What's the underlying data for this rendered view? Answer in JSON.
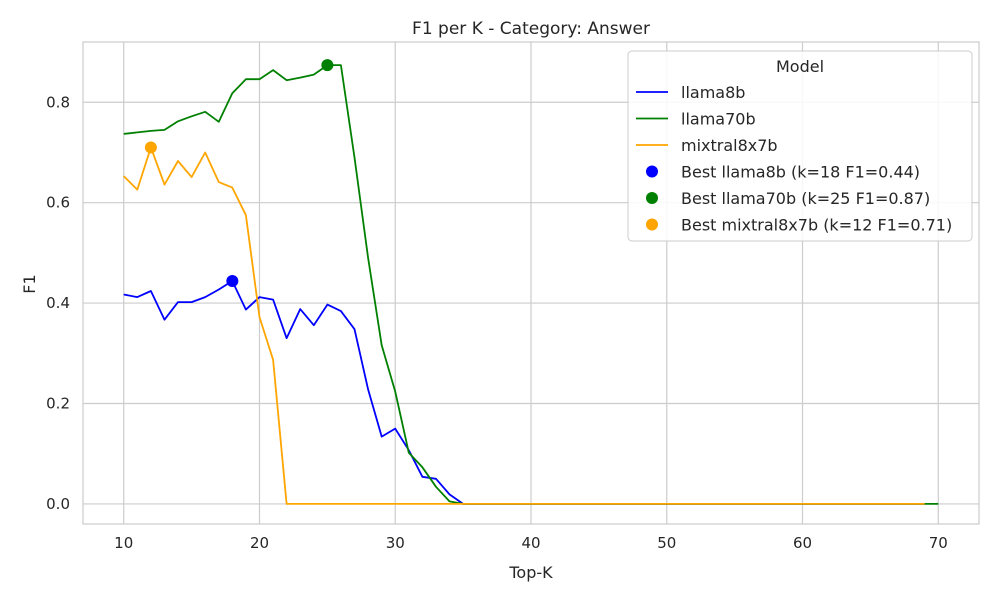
{
  "chart_data": {
    "type": "line",
    "title": "F1 per K - Category: Answer",
    "xlabel": "Top-K",
    "ylabel": "F1",
    "xlim": [
      7,
      73
    ],
    "ylim": [
      -0.04,
      0.92
    ],
    "xticks": [
      10,
      20,
      30,
      40,
      50,
      60,
      70
    ],
    "yticks": [
      0.0,
      0.2,
      0.4,
      0.6,
      0.8
    ],
    "ytick_labels": [
      "0.0",
      "0.2",
      "0.4",
      "0.6",
      "0.8"
    ],
    "grid": true,
    "legend": {
      "title": "Model",
      "placement": "top-right"
    },
    "series": [
      {
        "name": "llama8b",
        "color": "#0000ff",
        "x": [
          10,
          11,
          12,
          13,
          14,
          15,
          16,
          17,
          18,
          19,
          20,
          21,
          22,
          23,
          24,
          25,
          26,
          27,
          28,
          29,
          30,
          31,
          32,
          33,
          34,
          35,
          36,
          37,
          38,
          39,
          40,
          41,
          42,
          43,
          44,
          45,
          46,
          47,
          48,
          49,
          50,
          51,
          52,
          53,
          54,
          55,
          56,
          57,
          58,
          59,
          60,
          61,
          62,
          63,
          64,
          65,
          66,
          67,
          68,
          69
        ],
        "y": [
          0.417,
          0.412,
          0.424,
          0.367,
          0.402,
          0.402,
          0.412,
          0.427,
          0.444,
          0.387,
          0.412,
          0.407,
          0.33,
          0.388,
          0.356,
          0.397,
          0.384,
          0.348,
          0.228,
          0.134,
          0.15,
          0.107,
          0.054,
          0.05,
          0.019,
          0.0,
          0,
          0,
          0,
          0,
          0,
          0,
          0,
          0,
          0,
          0,
          0,
          0,
          0,
          0,
          0,
          0,
          0,
          0,
          0,
          0,
          0,
          0,
          0,
          0,
          0,
          0,
          0,
          0,
          0,
          0,
          0,
          0,
          0,
          0
        ]
      },
      {
        "name": "llama70b",
        "color": "#008000",
        "x": [
          10,
          11,
          12,
          13,
          14,
          15,
          16,
          17,
          18,
          19,
          20,
          21,
          22,
          23,
          24,
          25,
          26,
          27,
          28,
          29,
          30,
          31,
          32,
          33,
          34,
          35,
          36,
          37,
          38,
          39,
          40,
          41,
          42,
          43,
          44,
          45,
          46,
          47,
          48,
          49,
          50,
          51,
          52,
          53,
          54,
          55,
          56,
          57,
          58,
          59,
          60,
          61,
          62,
          63,
          64,
          65,
          66,
          67,
          68,
          69,
          70
        ],
        "y": [
          0.737,
          0.74,
          0.743,
          0.745,
          0.762,
          0.772,
          0.781,
          0.761,
          0.818,
          0.846,
          0.846,
          0.864,
          0.844,
          0.849,
          0.855,
          0.874,
          0.874,
          0.69,
          0.49,
          0.316,
          0.224,
          0.102,
          0.073,
          0.034,
          0.005,
          0.0,
          0,
          0,
          0,
          0,
          0,
          0,
          0,
          0,
          0,
          0,
          0,
          0,
          0,
          0,
          0,
          0,
          0,
          0,
          0,
          0,
          0,
          0,
          0,
          0,
          0,
          0,
          0,
          0,
          0,
          0,
          0,
          0,
          0,
          0,
          0
        ]
      },
      {
        "name": "mixtral8x7b",
        "color": "#ffa500",
        "x": [
          10,
          11,
          12,
          13,
          14,
          15,
          16,
          17,
          18,
          19,
          20,
          21,
          22,
          23,
          24,
          25,
          26,
          27,
          28,
          29,
          30,
          31,
          32,
          33,
          34,
          35,
          36,
          37,
          38,
          39,
          40,
          41,
          42,
          43,
          44,
          45,
          46,
          47,
          48,
          49,
          50,
          51,
          52,
          53,
          54,
          55,
          56,
          57,
          58,
          59,
          60,
          61,
          62,
          63,
          64,
          65,
          66,
          67,
          68,
          69
        ],
        "y": [
          0.653,
          0.626,
          0.71,
          0.636,
          0.683,
          0.651,
          0.7,
          0.641,
          0.63,
          0.575,
          0.372,
          0.287,
          0.0,
          0,
          0,
          0,
          0,
          0,
          0,
          0,
          0,
          0,
          0,
          0,
          0,
          0,
          0,
          0,
          0,
          0,
          0,
          0,
          0,
          0,
          0,
          0,
          0,
          0,
          0,
          0,
          0,
          0,
          0,
          0,
          0,
          0,
          0,
          0,
          0,
          0,
          0,
          0,
          0,
          0,
          0,
          0,
          0,
          0,
          0,
          0
        ]
      }
    ],
    "best_points": [
      {
        "name": "Best llama8b (k=18 F1=0.44)",
        "color": "#0000ff",
        "x": 18,
        "y": 0.444
      },
      {
        "name": "Best llama70b (k=25 F1=0.87)",
        "color": "#008000",
        "x": 25,
        "y": 0.874
      },
      {
        "name": "Best mixtral8x7b (k=12 F1=0.71)",
        "color": "#ffa500",
        "x": 12,
        "y": 0.71
      }
    ]
  }
}
